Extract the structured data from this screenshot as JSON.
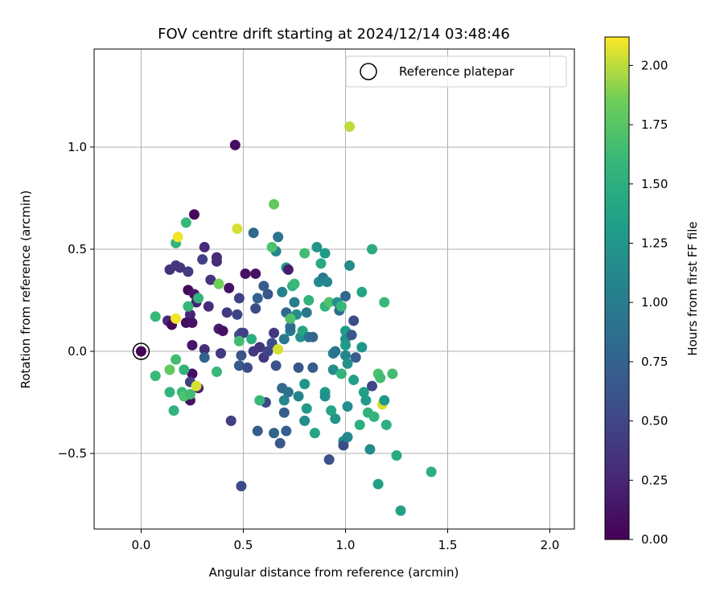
{
  "chart_data": {
    "type": "scatter",
    "title": "FOV centre drift starting at 2024/12/14 03:48:46",
    "xlabel": "Angular distance from reference (arcmin)",
    "ylabel": "Rotation from reference (arcmin)",
    "xlim": [
      -0.23,
      2.12
    ],
    "ylim": [
      -0.87,
      1.48
    ],
    "xticks": [
      0.0,
      0.5,
      1.0,
      1.5,
      2.0
    ],
    "xtick_labels": [
      "0.0",
      "0.5",
      "1.0",
      "1.5",
      "2.0"
    ],
    "yticks": [
      -0.5,
      0.0,
      0.5,
      1.0
    ],
    "ytick_labels": [
      "−0.5",
      "0.0",
      "0.5",
      "1.0"
    ],
    "grid": true,
    "legend": {
      "position": "top-right",
      "entries": [
        "Reference platepar"
      ]
    },
    "reference_point": {
      "x": 0.0,
      "y": 0.0,
      "label": "Reference platepar"
    },
    "colorbar": {
      "label": "Hours from first FF file",
      "colormap": "viridis",
      "range": [
        0.0,
        2.12
      ],
      "ticks": [
        0.0,
        0.25,
        0.5,
        0.75,
        1.0,
        1.25,
        1.5,
        1.75,
        2.0
      ],
      "tick_labels": [
        "0.00",
        "0.25",
        "0.50",
        "0.75",
        "1.00",
        "1.25",
        "1.50",
        "1.75",
        "2.00"
      ]
    },
    "series": [
      {
        "points": [
          {
            "x": 0.0,
            "y": 0.0,
            "c": 0.02
          },
          {
            "x": 0.46,
            "y": 1.01,
            "c": 0.08
          },
          {
            "x": 0.26,
            "y": 0.67,
            "c": 0.05
          },
          {
            "x": 0.14,
            "y": 0.4,
            "c": 0.35
          },
          {
            "x": 0.17,
            "y": 0.42,
            "c": 0.4
          },
          {
            "x": 0.19,
            "y": 0.41,
            "c": 0.38
          },
          {
            "x": 0.23,
            "y": 0.39,
            "c": 0.42
          },
          {
            "x": 0.31,
            "y": 0.51,
            "c": 0.3
          },
          {
            "x": 0.3,
            "y": 0.45,
            "c": 0.45
          },
          {
            "x": 0.37,
            "y": 0.46,
            "c": 0.28
          },
          {
            "x": 0.37,
            "y": 0.44,
            "c": 0.3
          },
          {
            "x": 0.43,
            "y": 0.31,
            "c": 0.12
          },
          {
            "x": 0.51,
            "y": 0.38,
            "c": 0.1
          },
          {
            "x": 0.56,
            "y": 0.38,
            "c": 0.12
          },
          {
            "x": 0.23,
            "y": 0.3,
            "c": 0.06
          },
          {
            "x": 0.26,
            "y": 0.28,
            "c": 0.15
          },
          {
            "x": 0.27,
            "y": 0.24,
            "c": 0.2
          },
          {
            "x": 0.34,
            "y": 0.35,
            "c": 0.35
          },
          {
            "x": 0.33,
            "y": 0.22,
            "c": 0.3
          },
          {
            "x": 0.24,
            "y": 0.18,
            "c": 0.25
          },
          {
            "x": 0.22,
            "y": 0.14,
            "c": 0.08
          },
          {
            "x": 0.25,
            "y": 0.14,
            "c": 0.12
          },
          {
            "x": 0.13,
            "y": 0.15,
            "c": 0.3
          },
          {
            "x": 0.15,
            "y": 0.13,
            "c": 0.05
          },
          {
            "x": 0.38,
            "y": 0.11,
            "c": 0.18
          },
          {
            "x": 0.4,
            "y": 0.1,
            "c": 0.1
          },
          {
            "x": 0.42,
            "y": 0.19,
            "c": 0.4
          },
          {
            "x": 0.47,
            "y": 0.18,
            "c": 0.5
          },
          {
            "x": 0.48,
            "y": 0.26,
            "c": 0.45
          },
          {
            "x": 0.25,
            "y": 0.03,
            "c": 0.15
          },
          {
            "x": 0.31,
            "y": 0.01,
            "c": 0.3
          },
          {
            "x": 0.31,
            "y": -0.03,
            "c": 0.75
          },
          {
            "x": 0.39,
            "y": -0.01,
            "c": 0.4
          },
          {
            "x": 0.25,
            "y": -0.11,
            "c": 0.08
          },
          {
            "x": 0.24,
            "y": -0.15,
            "c": 0.45
          },
          {
            "x": 0.24,
            "y": -0.24,
            "c": 0.12
          },
          {
            "x": 0.28,
            "y": -0.18,
            "c": 0.2
          },
          {
            "x": 0.44,
            "y": -0.34,
            "c": 0.45
          },
          {
            "x": 0.49,
            "y": -0.66,
            "c": 0.55
          },
          {
            "x": 0.48,
            "y": 0.08,
            "c": 0.6
          },
          {
            "x": 0.49,
            "y": 0.09,
            "c": 0.55
          },
          {
            "x": 0.5,
            "y": 0.09,
            "c": 0.45
          },
          {
            "x": 0.49,
            "y": -0.02,
            "c": 0.6
          },
          {
            "x": 0.48,
            "y": -0.07,
            "c": 0.7
          },
          {
            "x": 0.52,
            "y": -0.08,
            "c": 0.55
          },
          {
            "x": 0.55,
            "y": 0.0,
            "c": 0.4
          },
          {
            "x": 0.56,
            "y": 0.21,
            "c": 0.55
          },
          {
            "x": 0.57,
            "y": 0.26,
            "c": 0.75
          },
          {
            "x": 0.6,
            "y": 0.32,
            "c": 0.7
          },
          {
            "x": 0.55,
            "y": 0.58,
            "c": 0.8
          },
          {
            "x": 0.58,
            "y": 0.02,
            "c": 0.35
          },
          {
            "x": 0.6,
            "y": -0.03,
            "c": 0.4
          },
          {
            "x": 0.62,
            "y": 0.0,
            "c": 0.5
          },
          {
            "x": 0.64,
            "y": 0.04,
            "c": 0.55
          },
          {
            "x": 0.66,
            "y": -0.07,
            "c": 0.6
          },
          {
            "x": 0.57,
            "y": -0.39,
            "c": 0.7
          },
          {
            "x": 0.61,
            "y": -0.25,
            "c": 0.5
          },
          {
            "x": 0.65,
            "y": -0.4,
            "c": 0.75
          },
          {
            "x": 0.68,
            "y": -0.45,
            "c": 0.65
          },
          {
            "x": 0.71,
            "y": -0.39,
            "c": 0.7
          },
          {
            "x": 0.62,
            "y": 0.28,
            "c": 0.65
          },
          {
            "x": 0.65,
            "y": 0.09,
            "c": 0.4
          },
          {
            "x": 0.66,
            "y": 0.49,
            "c": 1.1
          },
          {
            "x": 0.67,
            "y": 0.56,
            "c": 0.9
          },
          {
            "x": 0.69,
            "y": 0.29,
            "c": 1.05
          },
          {
            "x": 0.71,
            "y": 0.41,
            "c": 1.3
          },
          {
            "x": 0.72,
            "y": 0.4,
            "c": 0.2
          },
          {
            "x": 0.71,
            "y": 0.19,
            "c": 0.8
          },
          {
            "x": 0.7,
            "y": 0.06,
            "c": 0.95
          },
          {
            "x": 0.69,
            "y": -0.18,
            "c": 0.8
          },
          {
            "x": 0.7,
            "y": -0.24,
            "c": 1.1
          },
          {
            "x": 0.7,
            "y": -0.3,
            "c": 0.7
          },
          {
            "x": 0.72,
            "y": -0.2,
            "c": 0.9
          },
          {
            "x": 0.73,
            "y": 0.1,
            "c": 1.0
          },
          {
            "x": 0.73,
            "y": 0.12,
            "c": 0.85
          },
          {
            "x": 0.74,
            "y": 0.32,
            "c": 1.5
          },
          {
            "x": 0.75,
            "y": 0.24,
            "c": 1.0
          },
          {
            "x": 0.76,
            "y": 0.18,
            "c": 1.15
          },
          {
            "x": 0.77,
            "y": -0.08,
            "c": 0.65
          },
          {
            "x": 0.77,
            "y": -0.22,
            "c": 1.05
          },
          {
            "x": 0.78,
            "y": 0.07,
            "c": 1.2
          },
          {
            "x": 0.79,
            "y": 0.1,
            "c": 1.4
          },
          {
            "x": 0.8,
            "y": 0.48,
            "c": 1.65
          },
          {
            "x": 0.8,
            "y": -0.16,
            "c": 1.25
          },
          {
            "x": 0.8,
            "y": -0.34,
            "c": 1.15
          },
          {
            "x": 0.81,
            "y": -0.28,
            "c": 1.3
          },
          {
            "x": 0.81,
            "y": 0.19,
            "c": 0.95
          },
          {
            "x": 0.82,
            "y": 0.25,
            "c": 1.55
          },
          {
            "x": 0.82,
            "y": 0.07,
            "c": 0.9
          },
          {
            "x": 0.84,
            "y": 0.07,
            "c": 0.8
          },
          {
            "x": 0.84,
            "y": -0.08,
            "c": 0.7
          },
          {
            "x": 0.85,
            "y": -0.4,
            "c": 1.4
          },
          {
            "x": 0.86,
            "y": 0.51,
            "c": 1.25
          },
          {
            "x": 0.87,
            "y": 0.34,
            "c": 1.15
          },
          {
            "x": 0.88,
            "y": 0.43,
            "c": 1.45
          },
          {
            "x": 0.89,
            "y": 0.36,
            "c": 1.0
          },
          {
            "x": 0.9,
            "y": 0.48,
            "c": 1.3
          },
          {
            "x": 0.9,
            "y": 0.22,
            "c": 1.55
          },
          {
            "x": 0.9,
            "y": -0.2,
            "c": 1.3
          },
          {
            "x": 0.9,
            "y": -0.22,
            "c": 1.2
          },
          {
            "x": 0.91,
            "y": 0.34,
            "c": 1.1
          },
          {
            "x": 0.92,
            "y": 0.24,
            "c": 1.7
          },
          {
            "x": 0.92,
            "y": -0.53,
            "c": 0.6
          },
          {
            "x": 0.93,
            "y": -0.29,
            "c": 1.4
          },
          {
            "x": 0.94,
            "y": -0.01,
            "c": 1.0
          },
          {
            "x": 0.94,
            "y": -0.09,
            "c": 1.15
          },
          {
            "x": 0.95,
            "y": 0.0,
            "c": 0.9
          },
          {
            "x": 0.95,
            "y": -0.33,
            "c": 1.25
          },
          {
            "x": 0.96,
            "y": 0.24,
            "c": 1.2
          },
          {
            "x": 0.97,
            "y": 0.2,
            "c": 0.85
          },
          {
            "x": 0.98,
            "y": 0.22,
            "c": 1.6
          },
          {
            "x": 0.98,
            "y": -0.11,
            "c": 1.55
          },
          {
            "x": 0.99,
            "y": -0.44,
            "c": 1.2
          },
          {
            "x": 0.99,
            "y": -0.46,
            "c": 0.55
          },
          {
            "x": 1.0,
            "y": 0.27,
            "c": 0.8
          },
          {
            "x": 1.0,
            "y": 0.1,
            "c": 1.3
          },
          {
            "x": 1.0,
            "y": 0.06,
            "c": 1.2
          },
          {
            "x": 1.0,
            "y": 0.03,
            "c": 1.3
          },
          {
            "x": 1.0,
            "y": -0.02,
            "c": 1.1
          },
          {
            "x": 1.01,
            "y": -0.06,
            "c": 1.2
          },
          {
            "x": 1.01,
            "y": -0.27,
            "c": 1.15
          },
          {
            "x": 1.01,
            "y": -0.42,
            "c": 1.1
          },
          {
            "x": 1.02,
            "y": 1.1,
            "c": 2.0
          },
          {
            "x": 1.02,
            "y": 0.42,
            "c": 1.15
          },
          {
            "x": 1.03,
            "y": 0.08,
            "c": 0.65
          },
          {
            "x": 1.04,
            "y": 0.15,
            "c": 0.55
          },
          {
            "x": 1.04,
            "y": -0.14,
            "c": 1.35
          },
          {
            "x": 1.05,
            "y": -0.03,
            "c": 0.7
          },
          {
            "x": 1.07,
            "y": -0.36,
            "c": 1.5
          },
          {
            "x": 1.08,
            "y": 0.29,
            "c": 1.4
          },
          {
            "x": 1.08,
            "y": 0.02,
            "c": 1.25
          },
          {
            "x": 1.09,
            "y": -0.2,
            "c": 1.35
          },
          {
            "x": 1.1,
            "y": -0.24,
            "c": 1.3
          },
          {
            "x": 1.11,
            "y": -0.3,
            "c": 1.55
          },
          {
            "x": 1.12,
            "y": -0.48,
            "c": 1.15
          },
          {
            "x": 1.13,
            "y": -0.17,
            "c": 0.5
          },
          {
            "x": 1.13,
            "y": 0.5,
            "c": 1.45
          },
          {
            "x": 1.14,
            "y": -0.32,
            "c": 1.55
          },
          {
            "x": 1.16,
            "y": -0.11,
            "c": 1.7
          },
          {
            "x": 1.16,
            "y": -0.65,
            "c": 1.35
          },
          {
            "x": 1.17,
            "y": -0.13,
            "c": 1.65
          },
          {
            "x": 1.18,
            "y": -0.26,
            "c": 2.05
          },
          {
            "x": 1.19,
            "y": 0.24,
            "c": 1.6
          },
          {
            "x": 1.19,
            "y": -0.24,
            "c": 1.25
          },
          {
            "x": 1.2,
            "y": -0.36,
            "c": 1.5
          },
          {
            "x": 1.23,
            "y": -0.11,
            "c": 1.65
          },
          {
            "x": 1.25,
            "y": -0.51,
            "c": 1.45
          },
          {
            "x": 1.27,
            "y": -0.78,
            "c": 1.35
          },
          {
            "x": 1.42,
            "y": -0.59,
            "c": 1.5
          },
          {
            "x": 0.17,
            "y": 0.53,
            "c": 1.55
          },
          {
            "x": 0.18,
            "y": 0.56,
            "c": 2.1
          },
          {
            "x": 0.22,
            "y": 0.63,
            "c": 1.6
          },
          {
            "x": 0.07,
            "y": 0.17,
            "c": 1.6
          },
          {
            "x": 0.17,
            "y": 0.16,
            "c": 2.1
          },
          {
            "x": 0.23,
            "y": 0.22,
            "c": 1.6
          },
          {
            "x": 0.28,
            "y": 0.26,
            "c": 1.55
          },
          {
            "x": 0.38,
            "y": 0.33,
            "c": 1.85
          },
          {
            "x": 0.47,
            "y": 0.6,
            "c": 2.05
          },
          {
            "x": 0.65,
            "y": 0.72,
            "c": 1.8
          },
          {
            "x": 0.64,
            "y": 0.51,
            "c": 1.7
          },
          {
            "x": 0.48,
            "y": 0.05,
            "c": 1.65
          },
          {
            "x": 0.54,
            "y": 0.06,
            "c": 1.5
          },
          {
            "x": 0.67,
            "y": 0.01,
            "c": 2.05
          },
          {
            "x": 0.73,
            "y": 0.16,
            "c": 1.7
          },
          {
            "x": 0.75,
            "y": 0.33,
            "c": 1.6
          },
          {
            "x": 0.07,
            "y": -0.12,
            "c": 1.6
          },
          {
            "x": 0.14,
            "y": -0.09,
            "c": 1.8
          },
          {
            "x": 0.17,
            "y": -0.04,
            "c": 1.65
          },
          {
            "x": 0.21,
            "y": -0.09,
            "c": 1.55
          },
          {
            "x": 0.14,
            "y": -0.2,
            "c": 1.55
          },
          {
            "x": 0.16,
            "y": -0.29,
            "c": 1.55
          },
          {
            "x": 0.2,
            "y": -0.2,
            "c": 1.6
          },
          {
            "x": 0.21,
            "y": -0.22,
            "c": 1.7
          },
          {
            "x": 0.24,
            "y": -0.21,
            "c": 1.65
          },
          {
            "x": 0.27,
            "y": -0.17,
            "c": 2.05
          },
          {
            "x": 0.37,
            "y": -0.1,
            "c": 1.6
          },
          {
            "x": 0.58,
            "y": -0.24,
            "c": 1.6
          }
        ]
      }
    ]
  }
}
